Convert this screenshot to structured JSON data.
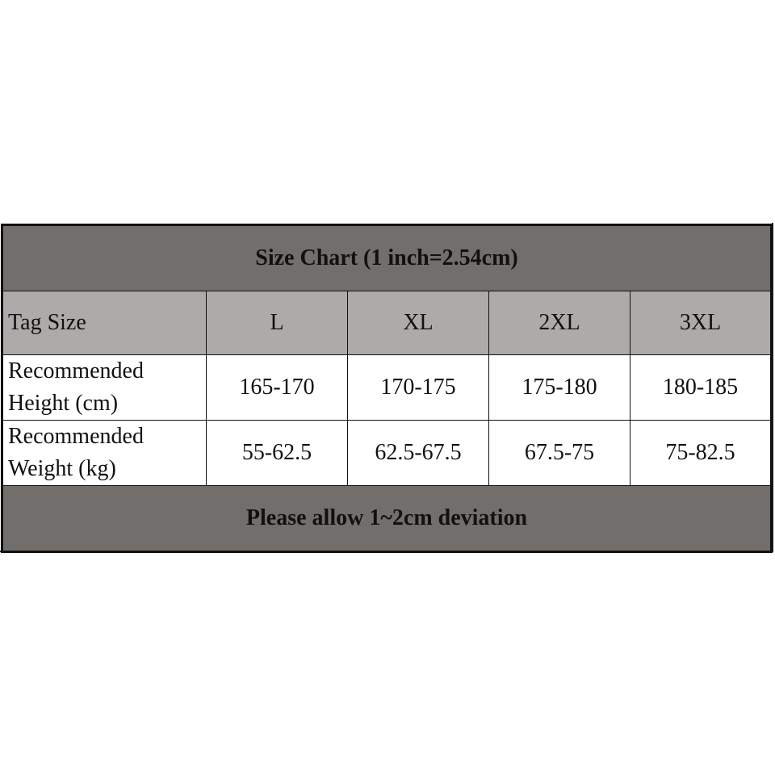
{
  "title": "Size Chart (1 inch=2.54cm)",
  "header": {
    "label": "Tag Size",
    "sizes": [
      "L",
      "XL",
      "2XL",
      "3XL"
    ]
  },
  "rows": [
    {
      "label_line1": "Recommended",
      "label_line2": "Height (cm)",
      "values": [
        "165-170",
        "170-175",
        "175-180",
        "180-185"
      ]
    },
    {
      "label_line1": "Recommended",
      "label_line2": "Weight (kg)",
      "values": [
        "55-62.5",
        "62.5-67.5",
        "67.5-75",
        "75-82.5"
      ]
    }
  ],
  "footer": "Please allow 1~2cm deviation",
  "colors": {
    "title_bg": "#716e6c",
    "header_bg": "#aeaaa9"
  }
}
